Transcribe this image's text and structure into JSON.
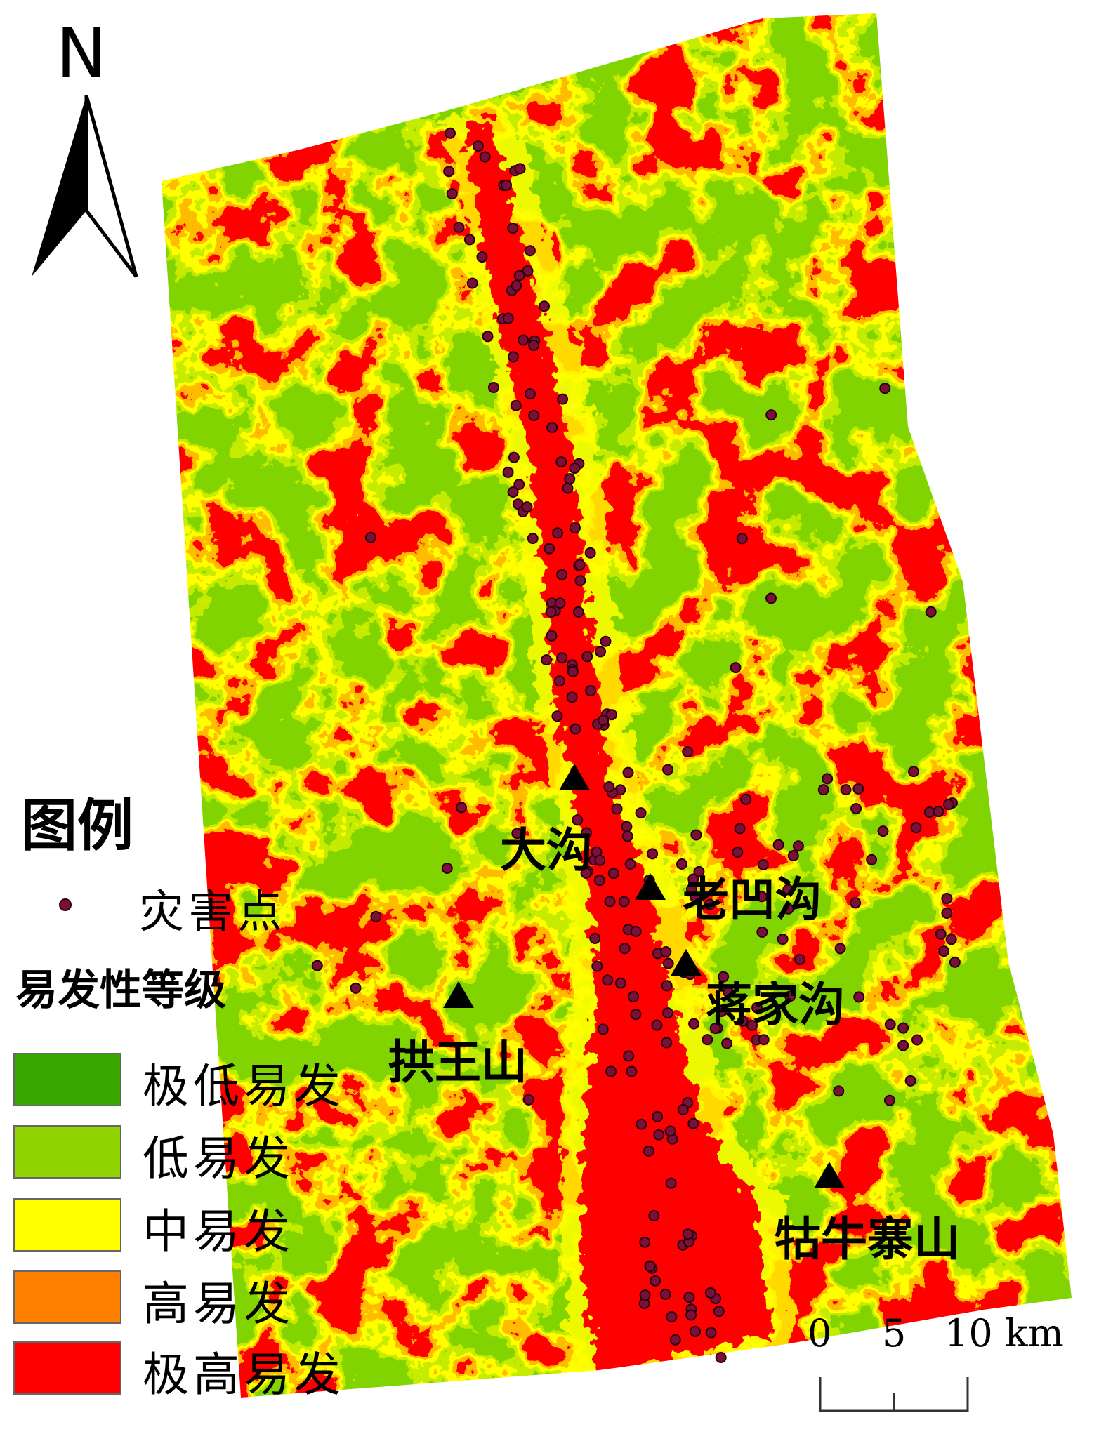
{
  "north_arrow": {
    "label": "N"
  },
  "legend": {
    "title": "图例",
    "hazard_point_label": "灾害点",
    "class_title": "易发性等级",
    "classes": [
      {
        "label": "极低易发",
        "color": "#38a800"
      },
      {
        "label": "低易发",
        "color": "#8fd400"
      },
      {
        "label": "中易发",
        "color": "#ffff00"
      },
      {
        "label": "高易发",
        "color": "#ff8000"
      },
      {
        "label": "极高易发",
        "color": "#ff0000"
      }
    ],
    "hazard_point_color": "#7a1038"
  },
  "places": [
    "大沟",
    "老凹沟",
    "蒋家沟",
    "拱王山",
    "牯牛寨山"
  ],
  "scale_bar": {
    "ticks": [
      "0",
      "5",
      "10 km"
    ]
  }
}
